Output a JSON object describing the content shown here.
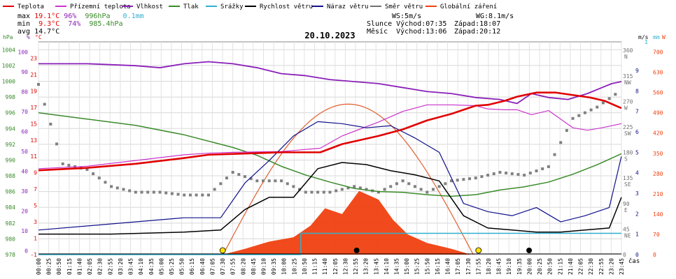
{
  "legend": [
    {
      "label": "Teplota",
      "color": "#e00000"
    },
    {
      "label": "Přízemní teplota",
      "color": "#cc33cc"
    },
    {
      "label": "Vlhkost",
      "color": "#8a20b8"
    },
    {
      "label": "Tlak",
      "color": "#3a8a2a"
    },
    {
      "label": "Srážky",
      "color": "#30b0d0"
    },
    {
      "label": "Rychlost větru",
      "color": "#000000"
    },
    {
      "label": "Náraz větru",
      "color": "#10108a"
    },
    {
      "label": "Směr větru",
      "color": "#707070"
    },
    {
      "label": "Globální záření",
      "color": "#f04010"
    }
  ],
  "stats": {
    "max_label": "max",
    "max_temp": "19.1°C",
    "max_hum": "96%",
    "max_press": "996hPa",
    "max_rain": "0.1mm",
    "min_label": "min",
    "min_temp": "9.3°C",
    "min_hum": "74%",
    "min_press": "985.4hPa",
    "avg_label": "avg",
    "avg_temp": "14.7°C"
  },
  "info": {
    "ws": "WS:5m/s",
    "wg": "WG:8.1m/s",
    "sun": "Slunce Východ:07:35",
    "sun_set": "Západ:18:07",
    "moon": "Měsíc  Východ:13:06",
    "moon_set": "Západ:20:12"
  },
  "axis_units": {
    "hpa": "hPa",
    "pct": "%",
    "degc": "°C",
    "ms": "m/s",
    "mm": "mm",
    "w": "W",
    "cas": "čas"
  },
  "chart_data": {
    "type": "line",
    "title": "20.10.2023",
    "xlabel": "čas",
    "x_ticks": [
      "00:00",
      "00:25",
      "00:50",
      "01:15",
      "01:40",
      "02:05",
      "02:30",
      "02:55",
      "03:20",
      "03:45",
      "04:10",
      "04:35",
      "05:00",
      "05:25",
      "05:50",
      "06:15",
      "06:40",
      "07:05",
      "07:30",
      "07:55",
      "08:20",
      "08:45",
      "09:10",
      "09:35",
      "10:00",
      "10:25",
      "10:50",
      "11:15",
      "11:40",
      "12:05",
      "12:30",
      "12:55",
      "13:20",
      "13:45",
      "14:10",
      "14:35",
      "15:00",
      "15:25",
      "15:50",
      "16:15",
      "16:40",
      "17:05",
      "17:30",
      "17:55",
      "18:20",
      "18:45",
      "19:10",
      "19:35",
      "20:00",
      "20:25",
      "20:50",
      "21:15",
      "21:40",
      "22:05",
      "22:30",
      "22:55",
      "23:20",
      "23:45"
    ],
    "axes": {
      "pressure_hpa": {
        "ticks": [
          1004,
          1002,
          1000,
          998,
          996,
          994,
          992,
          990,
          988,
          986,
          984,
          982,
          980,
          978
        ],
        "range": [
          978,
          1005
        ]
      },
      "humidity_pct": {
        "ticks": [
          100,
          90,
          80,
          70,
          60,
          50,
          40,
          30,
          20,
          10,
          0
        ],
        "range": [
          -2,
          105
        ]
      },
      "temperature_c": {
        "ticks": [
          23,
          21,
          19,
          17,
          15,
          13,
          11,
          9,
          7,
          5,
          3,
          1,
          -1
        ],
        "range": [
          -1,
          25
        ]
      },
      "wind_dir_deg": {
        "ticks": [
          "360 N",
          "315 NW",
          "270 W",
          "225 SW",
          "180 S",
          "135 SE",
          "90 E",
          "45 NE",
          "0"
        ],
        "range": [
          0,
          375
        ]
      },
      "wind_speed_ms": {
        "ticks": [
          9,
          8,
          7,
          6,
          5,
          4,
          3,
          2,
          1,
          0
        ],
        "range": [
          0,
          10.4
        ]
      },
      "rain_mm": {
        "ticks": [
          1
        ],
        "range": [
          0,
          1
        ]
      },
      "radiation_w": {
        "ticks": [
          700,
          630,
          560,
          490,
          420,
          350,
          280,
          210,
          140,
          70,
          0
        ],
        "range": [
          0,
          735
        ]
      }
    },
    "series": [
      {
        "name": "Teplota",
        "unit": "°C",
        "x": [
          0,
          2,
          4,
          6,
          7,
          8,
          10,
          11.6,
          12.5,
          14,
          15,
          16,
          17,
          18,
          18.5,
          19.2,
          19.7,
          20.5,
          21.3,
          22,
          22.7,
          23.3,
          24
        ],
        "y": [
          9.3,
          9.6,
          10.1,
          10.8,
          11.2,
          11.3,
          11.5,
          11.5,
          12.5,
          13.5,
          14.3,
          15.4,
          16.2,
          17.2,
          17.3,
          17.8,
          18.3,
          18.8,
          18.8,
          18.5,
          18.2,
          17.8,
          16.9
        ]
      },
      {
        "name": "Přízemní teplota",
        "unit": "°C",
        "x": [
          0,
          2,
          4,
          6,
          7,
          8,
          10,
          11.6,
          12.5,
          14,
          15,
          16,
          17,
          18,
          18.5,
          19.2,
          19.7,
          20.3,
          21,
          22,
          22.6,
          23.2,
          24
        ],
        "y": [
          9.5,
          9.8,
          10.5,
          11.2,
          11.4,
          11.5,
          11.6,
          12.0,
          13.5,
          15.2,
          16.5,
          17.3,
          17.3,
          17.2,
          16.8,
          16.7,
          16.7,
          16.1,
          16.6,
          14.5,
          14.2,
          14.5,
          15.0
        ]
      },
      {
        "name": "Vlhkost",
        "unit": "%",
        "x": [
          0,
          2,
          4,
          5,
          6,
          7,
          8,
          9,
          10,
          11,
          12,
          13,
          14,
          15,
          16,
          17,
          18,
          19,
          19.7,
          20.3,
          21,
          21.8,
          22.6,
          23.2,
          23.6,
          24
        ],
        "y": [
          94,
          94,
          93,
          92,
          94,
          95,
          94,
          92,
          89,
          88,
          86,
          85,
          84,
          82,
          80,
          79,
          77,
          76,
          74,
          79,
          77,
          76,
          79,
          82,
          84,
          85
        ]
      },
      {
        "name": "Tlak",
        "unit": "hPa",
        "x": [
          0,
          2,
          4,
          6,
          8,
          9,
          10,
          11,
          12,
          13,
          14,
          15,
          16,
          17,
          18,
          19,
          20,
          21,
          22,
          23,
          24
        ],
        "y": [
          996,
          995.2,
          994.4,
          993.2,
          991.6,
          990.6,
          989.2,
          988.1,
          987.2,
          986.4,
          986.0,
          985.9,
          985.6,
          985.4,
          985.6,
          986.2,
          986.6,
          987.2,
          988.2,
          989.4,
          990.8
        ]
      },
      {
        "name": "Rychlost větru",
        "unit": "m/s",
        "x": [
          0,
          3,
          6,
          7.5,
          8.5,
          9.5,
          10.5,
          11.5,
          12.5,
          13.5,
          14.5,
          15.5,
          16.5,
          17.5,
          18.5,
          19.5,
          20.5,
          21.5,
          22.5,
          23.5,
          24
        ],
        "y": [
          1.0,
          1.0,
          1.1,
          1.2,
          2.2,
          2.8,
          2.8,
          4.2,
          4.5,
          4.4,
          4.1,
          3.9,
          3.6,
          1.9,
          1.3,
          1.2,
          1.1,
          1.1,
          1.2,
          1.3,
          2.8
        ]
      },
      {
        "name": "Náraz větru",
        "unit": "m/s",
        "x": [
          0,
          3,
          6,
          7.5,
          8.5,
          9.5,
          10.5,
          11.5,
          12.5,
          13.5,
          14.5,
          15.5,
          16.5,
          17.5,
          18.5,
          19.5,
          20.5,
          21.5,
          22.5,
          23.5,
          24
        ],
        "y": [
          1.2,
          1.5,
          1.8,
          1.8,
          3.5,
          4.6,
          5.8,
          6.5,
          6.4,
          6.2,
          6.3,
          5.7,
          5.0,
          2.5,
          2.1,
          1.9,
          2.3,
          1.6,
          1.9,
          2.3,
          4.8
        ]
      },
      {
        "name": "Srážky",
        "unit": "mm",
        "x": [
          0,
          10.8,
          10.8,
          24
        ],
        "y": [
          0,
          0,
          0.1,
          0.1
        ]
      },
      {
        "name": "Globální záření",
        "unit": "W",
        "x": [
          7.6,
          8.5,
          9.5,
          10.5,
          11.2,
          11.8,
          12.5,
          13.2,
          14,
          14.6,
          15.2,
          16,
          17,
          17.8
        ],
        "y": [
          0,
          20,
          45,
          60,
          100,
          160,
          140,
          220,
          190,
          120,
          70,
          40,
          20,
          0
        ]
      },
      {
        "name": "Směr větru",
        "unit": "°",
        "x": [
          0,
          1,
          2,
          3,
          4,
          5,
          6,
          7,
          8,
          9,
          10,
          11,
          12,
          13,
          14,
          15,
          16,
          17,
          18,
          19,
          20,
          21,
          22,
          23,
          24
        ],
        "y": [
          300,
          160,
          150,
          120,
          110,
          110,
          105,
          105,
          145,
          130,
          130,
          110,
          110,
          120,
          110,
          130,
          110,
          130,
          135,
          145,
          140,
          155,
          240,
          260,
          290
        ]
      }
    ],
    "grid": true,
    "legend_position": "top"
  }
}
